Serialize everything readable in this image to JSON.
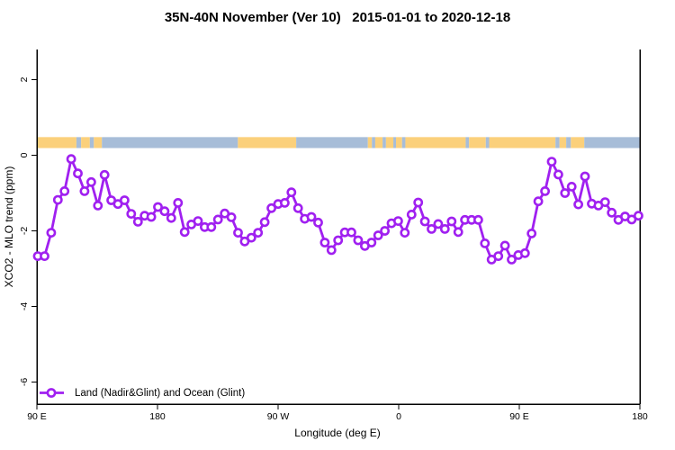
{
  "figure": {
    "background": "#FFFFFF",
    "axis_color": "#000000"
  },
  "chart_data": {
    "type": "line",
    "title": "35N-40N November (Ver 10)   2015-01-01 to 2020-12-18",
    "xlabel": "Longitude (deg E)",
    "ylabel": "XCO2 - MLO trend (ppm)",
    "grid": "off",
    "x_axis": {
      "range_deg": [
        90,
        540
      ],
      "tick_lons_deg": [
        90,
        180,
        270,
        360,
        450,
        540
      ],
      "tick_labels": [
        "90 E",
        "180",
        "90 W",
        "0",
        "90 E",
        "180"
      ]
    },
    "y_axis": {
      "range": [
        -6.6,
        2.8
      ],
      "tick_values": [
        2,
        0,
        -2,
        -4,
        -6
      ],
      "tick_labels": [
        "2",
        "0",
        "-2",
        "-4",
        "-6"
      ]
    },
    "legend": {
      "position": "bottom-left"
    },
    "series": [
      {
        "name": "Land (Nadir&Glint) and Ocean (Glint)",
        "color": "#A020F0",
        "marker": "open-circle",
        "lon_start_deg": 90.7,
        "lon_step_deg": 4.98,
        "values_ppm": [
          -2.67,
          -2.67,
          -2.05,
          -1.18,
          -0.95,
          -0.1,
          -0.48,
          -0.95,
          -0.71,
          -1.33,
          -0.52,
          -1.19,
          -1.29,
          -1.19,
          -1.55,
          -1.76,
          -1.6,
          -1.63,
          -1.37,
          -1.48,
          -1.66,
          -1.26,
          -2.03,
          -1.83,
          -1.74,
          -1.9,
          -1.9,
          -1.7,
          -1.54,
          -1.64,
          -2.05,
          -2.28,
          -2.18,
          -2.05,
          -1.77,
          -1.4,
          -1.29,
          -1.26,
          -0.98,
          -1.4,
          -1.68,
          -1.63,
          -1.78,
          -2.31,
          -2.51,
          -2.25,
          -2.04,
          -2.04,
          -2.25,
          -2.4,
          -2.31,
          -2.12,
          -2.0,
          -1.8,
          -1.74,
          -2.05,
          -1.57,
          -1.25,
          -1.75,
          -1.95,
          -1.82,
          -1.95,
          -1.75,
          -2.03,
          -1.71,
          -1.71,
          -1.71,
          -2.33,
          -2.76,
          -2.67,
          -2.39,
          -2.76,
          -2.64,
          -2.59,
          -2.07,
          -1.22,
          -0.95,
          -0.17,
          -0.51,
          -1.0,
          -0.83,
          -1.3,
          -0.56,
          -1.28,
          -1.33,
          -1.24,
          -1.52,
          -1.71,
          -1.62,
          -1.7,
          -1.6
        ]
      }
    ],
    "map_band": {
      "description": "land/ocean longitude strip",
      "y_ppm_range": [
        0.19,
        0.48
      ],
      "land_color": "#FBD07B",
      "ocean_color": "#A7BDD8",
      "segments": [
        [
          90,
          119.5,
          "land"
        ],
        [
          119.5,
          123,
          "ocean"
        ],
        [
          123,
          129.5,
          "land"
        ],
        [
          129.5,
          132.5,
          "ocean"
        ],
        [
          132.5,
          138.5,
          "land"
        ],
        [
          138.5,
          240,
          "ocean"
        ],
        [
          240,
          283.5,
          "land"
        ],
        [
          283.5,
          337,
          "ocean"
        ],
        [
          337,
          340,
          "land"
        ],
        [
          340,
          342.5,
          "ocean"
        ],
        [
          342.5,
          348,
          "land"
        ],
        [
          348,
          350.5,
          "ocean"
        ],
        [
          350.5,
          356,
          "land"
        ],
        [
          356,
          358,
          "ocean"
        ],
        [
          358,
          362.5,
          "land"
        ],
        [
          362.5,
          365,
          "ocean"
        ],
        [
          365,
          410,
          "land"
        ],
        [
          410,
          412.5,
          "ocean"
        ],
        [
          412.5,
          425,
          "land"
        ],
        [
          425,
          427.5,
          "ocean"
        ],
        [
          427.5,
          477,
          "land"
        ],
        [
          477,
          480,
          "ocean"
        ],
        [
          480,
          485,
          "land"
        ],
        [
          485,
          488.5,
          "ocean"
        ],
        [
          488.5,
          498.5,
          "land"
        ],
        [
          498.5,
          540,
          "ocean"
        ]
      ]
    }
  }
}
